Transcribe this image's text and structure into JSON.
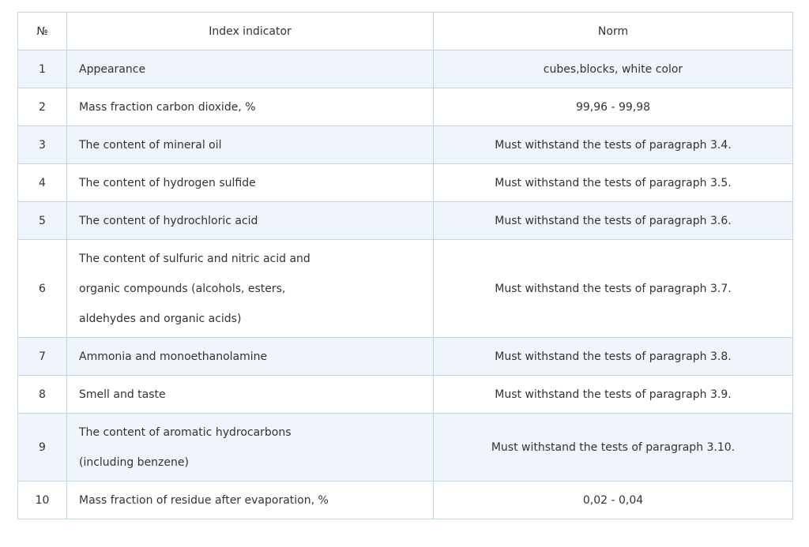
{
  "table": {
    "header": [
      "№",
      "Index indicator",
      "Norm"
    ],
    "rows": [
      [
        1,
        "Appearance",
        "cubes,blocks, white color"
      ],
      [
        2,
        "Mass fraction carbon dioxide, %",
        "99,96 - 99,98"
      ],
      [
        3,
        "The content of mineral oil",
        "Must withstand the tests of paragraph 3.4."
      ],
      [
        4,
        "The content of hydrogen sulfide",
        "Must withstand the tests of paragraph 3.5."
      ],
      [
        5,
        "The content of hydrochloric acid",
        "Must withstand the tests of paragraph 3.6."
      ],
      [
        6,
        [
          "The content of sulfuric and nitric acid and",
          "organic compounds (alcohols, esters,",
          "aldehydes and organic acids)"
        ],
        "Must withstand the tests of paragraph 3.7."
      ],
      [
        7,
        "Ammonia and monoethanolamine",
        "Must withstand the tests of paragraph 3.8."
      ],
      [
        8,
        "Smell and taste",
        "Must withstand the tests of paragraph 3.9."
      ],
      [
        9,
        [
          "The content of aromatic hydrocarbons",
          "(including benzene)"
        ],
        "Must withstand the tests of paragraph 3.10."
      ],
      [
        10,
        "Mass fraction of residue after evaporation, %",
        "0,02 - 0,04"
      ]
    ]
  }
}
